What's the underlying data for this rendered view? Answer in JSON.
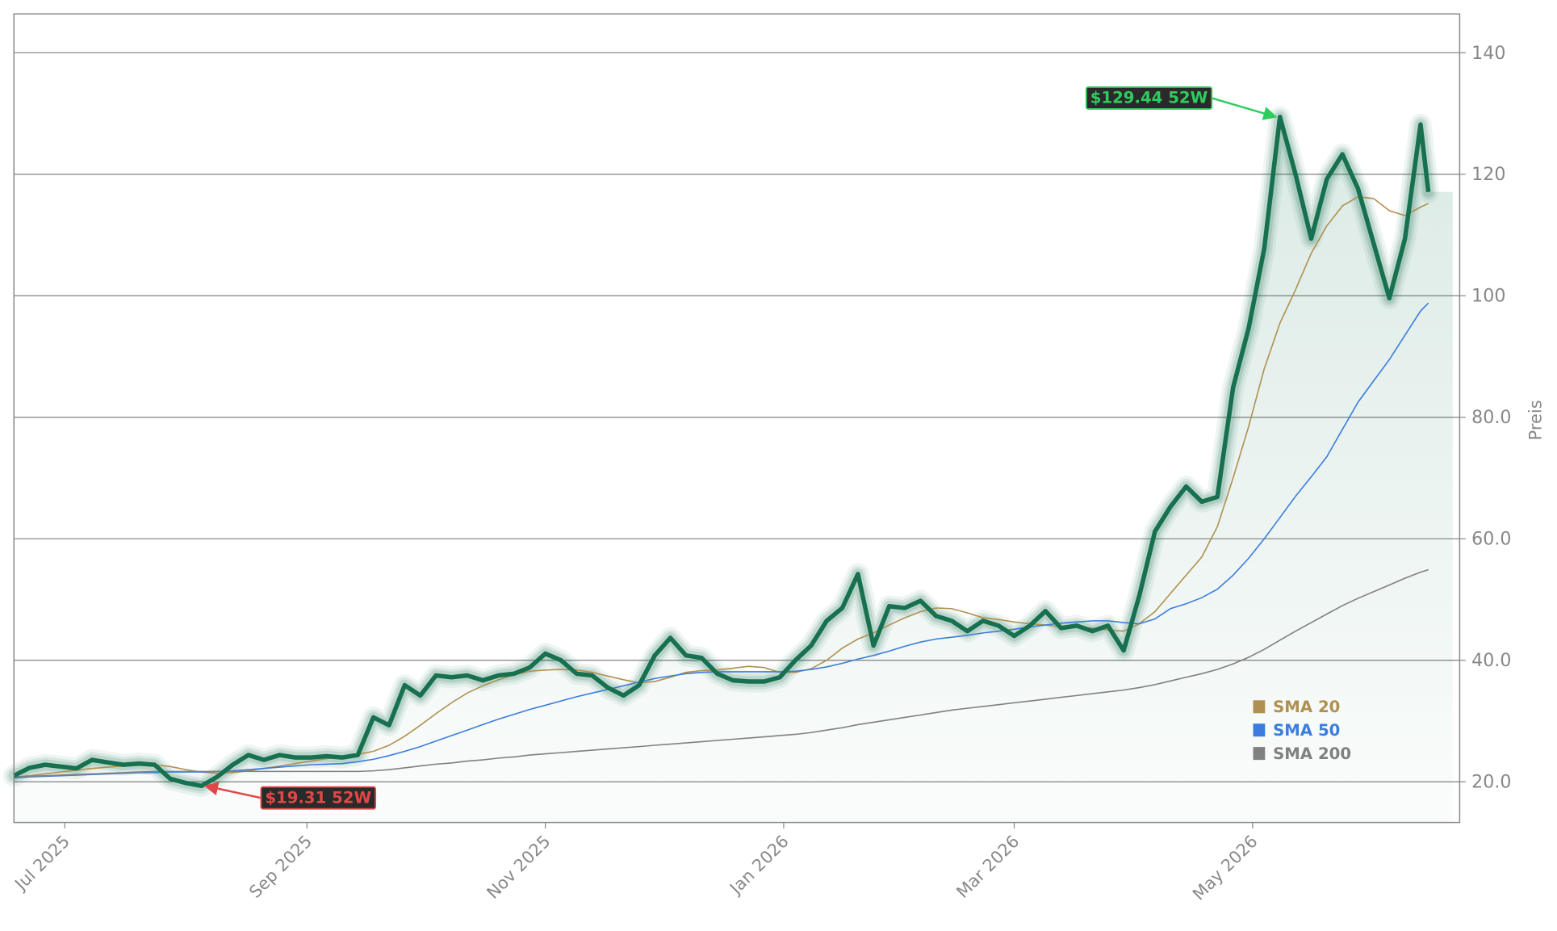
{
  "chart_data": {
    "type": "line",
    "y_label": "Preis",
    "y_side": "right",
    "grid": true,
    "legend": "lower right",
    "xlim": [
      0,
      370
    ],
    "ylim": [
      13.3,
      146.4
    ],
    "xticks": [
      {
        "value": 13,
        "label": "Jul 2025"
      },
      {
        "value": 75,
        "label": "Sep 2025"
      },
      {
        "value": 136,
        "label": "Nov 2025"
      },
      {
        "value": 197,
        "label": "Jan 2026"
      },
      {
        "value": 256,
        "label": "Mar 2026"
      },
      {
        "value": 317,
        "label": "May 2026"
      }
    ],
    "yticks": [
      {
        "value": 20,
        "label": "20.0"
      },
      {
        "value": 40,
        "label": "40.0"
      },
      {
        "value": 60,
        "label": "60.0"
      },
      {
        "value": 80,
        "label": "80.0"
      },
      100,
      120,
      140
    ],
    "x": [
      0,
      4,
      8,
      12,
      16,
      20,
      24,
      28,
      32,
      36,
      40,
      44,
      48,
      52,
      56,
      60,
      64,
      68,
      72,
      76,
      80,
      84,
      88,
      92,
      96,
      100,
      104,
      108,
      112,
      116,
      120,
      124,
      128,
      132,
      136,
      140,
      144,
      148,
      152,
      156,
      160,
      164,
      168,
      172,
      176,
      180,
      184,
      188,
      192,
      196,
      200,
      204,
      208,
      212,
      216,
      220,
      224,
      228,
      232,
      236,
      240,
      244,
      248,
      252,
      256,
      260,
      264,
      268,
      272,
      276,
      280,
      284,
      288,
      292,
      296,
      300,
      304,
      308,
      312,
      316,
      320,
      324,
      328,
      332,
      336,
      340,
      344,
      348,
      352,
      356,
      360,
      362
    ],
    "series": [
      {
        "color": "#17704f",
        "values": [
          21,
          22.3,
          22.8,
          22.5,
          22.2,
          23.6,
          23.2,
          22.8,
          23,
          22.8,
          20.5,
          19.8,
          19.31,
          20.8,
          22.8,
          24.4,
          23.6,
          24.4,
          24,
          24,
          24.2,
          24,
          24.4,
          30.6,
          29.3,
          35.9,
          34.2,
          37.5,
          37.2,
          37.5,
          36.7,
          37.5,
          37.8,
          38.8,
          41.1,
          40,
          37.8,
          37.5,
          35.5,
          34.2,
          35.9,
          40.8,
          43.7,
          40.8,
          40.4,
          37.8,
          36.7,
          36.5,
          36.5,
          37.2,
          40,
          42.4,
          46.5,
          48.6,
          54.2,
          42.4,
          48.9,
          48.6,
          49.8,
          47.3,
          46.5,
          44.8,
          46.5,
          45.7,
          44,
          45.7,
          48.1,
          45.3,
          45.7,
          44.8,
          45.7,
          41.6,
          50.6,
          61.2,
          65.3,
          68.6,
          66.1,
          66.9,
          84.9,
          94.7,
          107.8,
          129.44,
          120,
          109.4,
          119.2,
          123.3,
          117.6,
          108.6,
          99.6,
          109.4,
          128.2,
          117.1
        ]
      },
      {
        "name": "SMA 20",
        "color": "#b09050",
        "values": [
          20.8,
          21.0,
          21.3,
          21.6,
          21.9,
          22.2,
          22.4,
          22.6,
          22.7,
          22.8,
          22.5,
          22.0,
          21.6,
          21.4,
          21.5,
          21.8,
          22.2,
          22.6,
          23.0,
          23.4,
          23.8,
          24.2,
          24.5,
          25.0,
          26.0,
          27.5,
          29.3,
          31.2,
          33.0,
          34.6,
          35.8,
          36.8,
          37.6,
          38.2,
          38.4,
          38.5,
          38.4,
          38.0,
          37.4,
          36.8,
          36.3,
          36.5,
          37.2,
          38.0,
          38.3,
          38.4,
          38.7,
          39.0,
          38.8,
          38.0,
          38.0,
          38.6,
          40.0,
          42.0,
          43.5,
          44.5,
          45.8,
          47.0,
          48.0,
          48.6,
          48.5,
          47.8,
          47.0,
          46.7,
          46.3,
          46.0,
          45.8,
          45.5,
          45.4,
          45.3,
          45.0,
          44.8,
          46.0,
          48.0,
          51.0,
          54.0,
          57.0,
          62.0,
          70.0,
          78.5,
          88.0,
          95.5,
          101.0,
          107.0,
          111.5,
          114.8,
          116.3,
          116.0,
          114.0,
          113.2,
          114.6,
          115.2
        ]
      },
      {
        "name": "SMA 50",
        "color": "#3b7ddd",
        "values": [
          20.6,
          20.8,
          20.9,
          21.0,
          21.1,
          21.2,
          21.3,
          21.4,
          21.5,
          21.5,
          21.6,
          21.6,
          21.6,
          21.7,
          21.8,
          22.0,
          22.2,
          22.4,
          22.6,
          22.8,
          22.9,
          23.0,
          23.3,
          23.7,
          24.3,
          25.0,
          25.8,
          26.7,
          27.6,
          28.5,
          29.4,
          30.3,
          31.1,
          31.9,
          32.6,
          33.3,
          34.0,
          34.6,
          35.2,
          35.8,
          36.4,
          37.0,
          37.4,
          37.8,
          38.0,
          38.1,
          38.1,
          38.1,
          38.1,
          38.1,
          38.2,
          38.5,
          38.9,
          39.5,
          40.2,
          40.8,
          41.5,
          42.3,
          43.0,
          43.5,
          43.8,
          44.1,
          44.5,
          44.8,
          45.1,
          45.5,
          45.8,
          46.1,
          46.3,
          46.5,
          46.5,
          46.2,
          46.0,
          46.8,
          48.5,
          49.3,
          50.3,
          51.7,
          54.0,
          56.8,
          60.0,
          63.5,
          67.0,
          70.2,
          73.5,
          78.0,
          82.5,
          86.0,
          89.5,
          93.5,
          97.5,
          98.8
        ]
      },
      {
        "name": "SMA 200",
        "color": "#808080",
        "values": [
          20.8,
          20.9,
          21.0,
          21.1,
          21.2,
          21.3,
          21.4,
          21.5,
          21.6,
          21.7,
          21.7,
          21.7,
          21.7,
          21.7,
          21.7,
          21.7,
          21.7,
          21.7,
          21.7,
          21.7,
          21.7,
          21.7,
          21.7,
          21.8,
          22.0,
          22.3,
          22.6,
          22.9,
          23.1,
          23.4,
          23.6,
          23.9,
          24.1,
          24.4,
          24.6,
          24.8,
          25.0,
          25.2,
          25.4,
          25.6,
          25.8,
          26.0,
          26.2,
          26.4,
          26.6,
          26.8,
          27.0,
          27.2,
          27.4,
          27.6,
          27.8,
          28.1,
          28.5,
          28.9,
          29.4,
          29.8,
          30.2,
          30.6,
          31.0,
          31.4,
          31.8,
          32.1,
          32.4,
          32.7,
          33.0,
          33.3,
          33.6,
          33.9,
          34.2,
          34.5,
          34.8,
          35.1,
          35.5,
          36.0,
          36.6,
          37.2,
          37.8,
          38.5,
          39.4,
          40.5,
          41.8,
          43.3,
          44.8,
          46.2,
          47.6,
          49.0,
          50.2,
          51.3,
          52.4,
          53.5,
          54.5,
          54.9
        ]
      }
    ],
    "annotations": [
      {
        "label": "$129.44 52W",
        "value": 129.44,
        "x": 324,
        "color": "#2ecc5f"
      },
      {
        "label": "$19.31 52W",
        "value": 19.31,
        "x": 48,
        "color": "#e04848"
      }
    ]
  }
}
